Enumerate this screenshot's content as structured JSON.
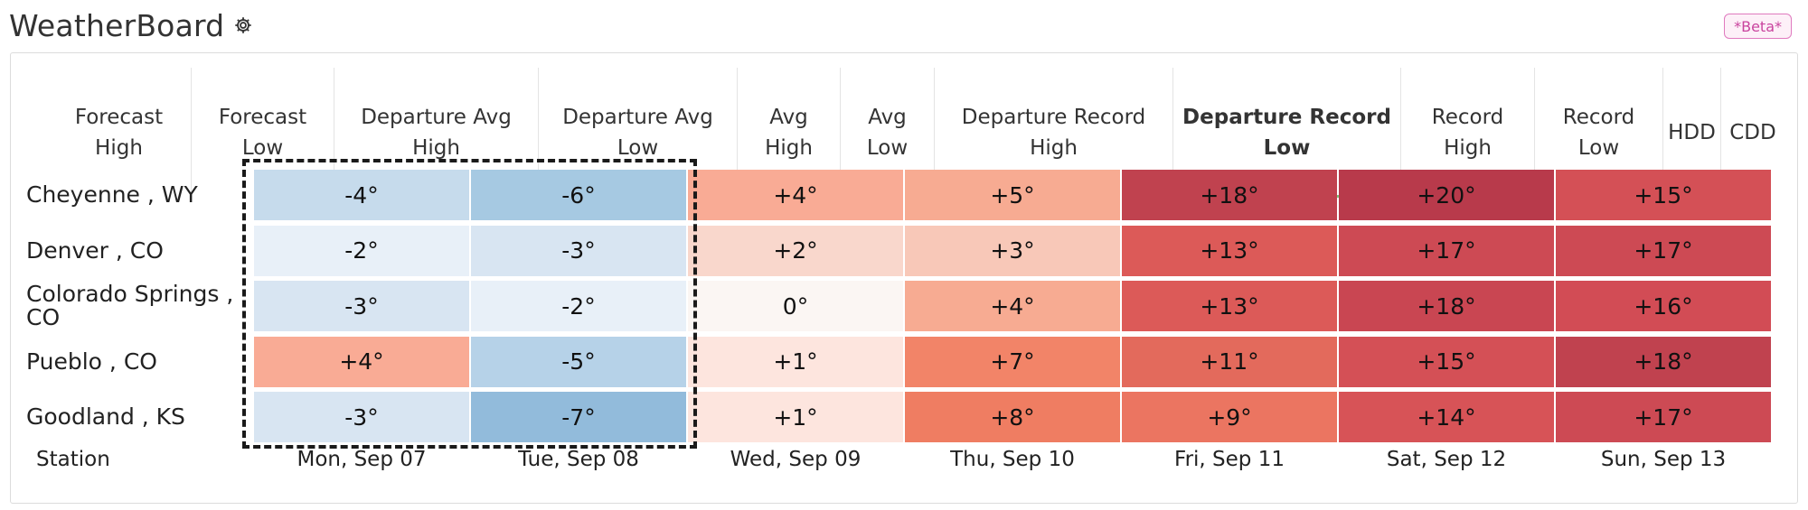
{
  "app": {
    "title": "WeatherBoard",
    "badge": "*Beta*"
  },
  "tabs": [
    {
      "label": "Forecast\nHigh",
      "active": false
    },
    {
      "label": "Forecast\nLow",
      "active": false
    },
    {
      "label": "Departure Avg\nHigh",
      "active": false
    },
    {
      "label": "Departure Avg\nLow",
      "active": false
    },
    {
      "label": "Avg\nHigh",
      "active": false
    },
    {
      "label": "Avg\nLow",
      "active": false
    },
    {
      "label": "Departure Record\nHigh",
      "active": false
    },
    {
      "label": "Departure Record\nLow",
      "active": true
    },
    {
      "label": "Record\nHigh",
      "active": false
    },
    {
      "label": "Record\nLow",
      "active": false
    },
    {
      "label": "HDD",
      "active": false
    },
    {
      "label": "CDD",
      "active": false
    }
  ],
  "table": {
    "station_header": "Station",
    "dates": [
      "Mon, Sep 07",
      "Tue, Sep 08",
      "Wed, Sep 09",
      "Thu, Sep 10",
      "Fri, Sep 11",
      "Sat, Sep 12",
      "Sun, Sep 13"
    ],
    "rows": [
      {
        "station": "Cheyenne , WY",
        "values": [
          "-4°",
          "-6°",
          "+4°",
          "+5°",
          "+18°",
          "+20°",
          "+15°"
        ]
      },
      {
        "station": "Denver , CO",
        "values": [
          "-2°",
          "-3°",
          "+2°",
          "+3°",
          "+13°",
          "+17°",
          "+17°"
        ]
      },
      {
        "station": "Colorado Springs , CO",
        "values": [
          "-3°",
          "-2°",
          "0°",
          "+4°",
          "+13°",
          "+18°",
          "+16°"
        ]
      },
      {
        "station": "Pueblo , CO",
        "values": [
          "+4°",
          "-5°",
          "+1°",
          "+7°",
          "+11°",
          "+15°",
          "+18°"
        ]
      },
      {
        "station": "Goodland , KS",
        "values": [
          "-3°",
          "-7°",
          "+1°",
          "+8°",
          "+9°",
          "+14°",
          "+17°"
        ]
      }
    ],
    "colors": [
      [
        "#c6dbec",
        "#a6c9e2",
        "#f9ab95",
        "#f7ab92",
        "#c0424f",
        "#b83a4b",
        "#d45056"
      ],
      [
        "#e8f0f8",
        "#d8e5f2",
        "#f9d7cc",
        "#f8c8b8",
        "#dc5a58",
        "#cd4a54",
        "#cd4a54"
      ],
      [
        "#d8e5f2",
        "#e8f0f8",
        "#fbf6f3",
        "#f7ab92",
        "#dc5a58",
        "#c94652",
        "#d24c55"
      ],
      [
        "#f9ab95",
        "#b6d2e8",
        "#fde5de",
        "#f28468",
        "#e36a5c",
        "#d45056",
        "#c0424f"
      ],
      [
        "#d8e5f2",
        "#92bbdb",
        "#fde5de",
        "#ef7d62",
        "#eb7561",
        "#d75357",
        "#cd4a54"
      ]
    ]
  }
}
